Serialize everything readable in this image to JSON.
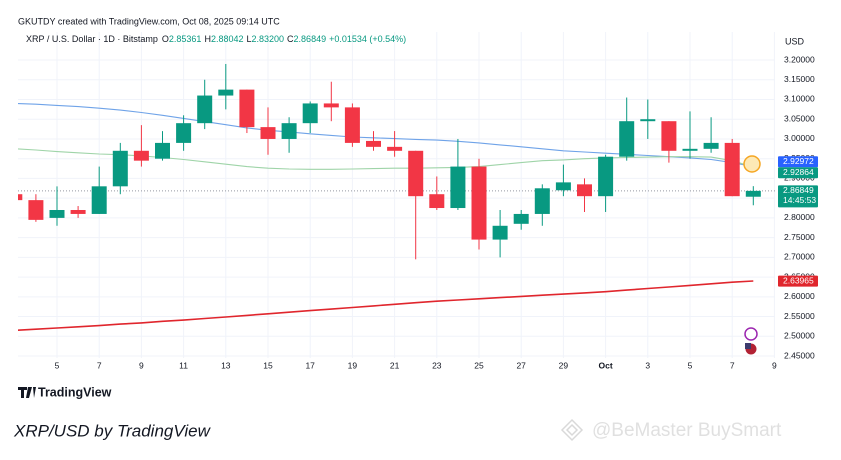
{
  "chart_data": {
    "type": "candlestick",
    "credit": "GKUTDY created with TradingView.com, Oct 08, 2025 09:14 UTC",
    "symbol": "XRP / U.S. Dollar · 1D · Bitstamp",
    "legend_values": [
      {
        "key": "O",
        "value": "2.85361"
      },
      {
        "key": "H",
        "value": "2.88042"
      },
      {
        "key": "L",
        "value": "2.83200"
      },
      {
        "key": "C",
        "value": "2.86849"
      }
    ],
    "change": "+0.01534 (+0.54%)",
    "currency": "USD",
    "categories": [
      null,
      null,
      "5",
      null,
      "7",
      null,
      "9",
      null,
      "11",
      null,
      "13",
      null,
      "15",
      null,
      "17",
      null,
      "19",
      null,
      "21",
      null,
      "23",
      null,
      "25",
      null,
      "27",
      null,
      "29",
      null,
      "Oct",
      null,
      "3",
      null,
      "5",
      null,
      "7",
      null,
      "9"
    ],
    "open": [
      2.86,
      2.845,
      2.8,
      2.82,
      2.81,
      2.88,
      2.97,
      2.95,
      2.99,
      3.04,
      3.11,
      3.125,
      3.03,
      3.0,
      3.04,
      3.09,
      3.08,
      2.995,
      2.98,
      2.97,
      2.86,
      2.825,
      2.93,
      2.745,
      2.785,
      2.81,
      2.87,
      2.885,
      2.855,
      2.955,
      3.045,
      3.045,
      2.97,
      2.975,
      2.99,
      2.85361,
      null
    ],
    "high": [
      2.87,
      2.86,
      2.88,
      2.83,
      2.93,
      2.99,
      3.035,
      3.02,
      3.06,
      3.15,
      3.19,
      3.125,
      3.08,
      3.055,
      3.095,
      3.145,
      3.09,
      3.02,
      3.02,
      2.97,
      2.905,
      3.0,
      2.95,
      2.82,
      2.82,
      2.885,
      2.935,
      2.9,
      2.96,
      3.105,
      3.1,
      3.045,
      3.07,
      3.055,
      3.0,
      2.88042,
      null
    ],
    "low": [
      2.84,
      2.79,
      2.78,
      2.8,
      2.81,
      2.86,
      2.93,
      2.945,
      2.97,
      3.025,
      3.075,
      3.015,
      2.96,
      2.965,
      3.015,
      3.045,
      2.98,
      2.97,
      2.955,
      2.695,
      2.82,
      2.82,
      2.72,
      2.7,
      2.77,
      2.78,
      2.855,
      2.815,
      2.815,
      2.945,
      3.0,
      2.94,
      2.95,
      2.965,
      2.855,
      2.832,
      null
    ],
    "close": [
      2.845,
      2.795,
      2.82,
      2.81,
      2.88,
      2.97,
      2.945,
      2.99,
      3.04,
      3.11,
      3.125,
      3.03,
      3.0,
      3.04,
      3.09,
      3.08,
      2.99,
      2.98,
      2.97,
      2.855,
      2.825,
      2.93,
      2.745,
      2.78,
      2.81,
      2.875,
      2.89,
      2.855,
      2.955,
      3.045,
      3.05,
      2.97,
      2.975,
      2.99,
      2.855,
      2.86849,
      null
    ],
    "up_color": "#089981",
    "down_color": "#f23645",
    "series": [
      {
        "color": "#6fa3e8",
        "values": [
          3.09,
          3.088,
          3.085,
          3.082,
          3.078,
          3.073,
          3.067,
          3.06,
          3.052,
          3.044,
          3.036,
          3.028,
          3.022,
          3.018,
          3.013,
          3.009,
          3.005,
          3.003,
          3.001,
          2.999,
          2.997,
          2.994,
          2.99,
          2.985,
          2.98,
          2.975,
          2.97,
          2.967,
          2.964,
          2.961,
          2.958,
          2.955,
          2.952,
          2.948,
          2.94,
          2.93,
          null
        ]
      },
      {
        "color": "#9fd4a8",
        "values": [
          2.975,
          2.972,
          2.968,
          2.965,
          2.962,
          2.96,
          2.957,
          2.953,
          2.948,
          2.942,
          2.936,
          2.93,
          2.926,
          2.924,
          2.923,
          2.923,
          2.924,
          2.925,
          2.926,
          2.926,
          2.927,
          2.928,
          2.93,
          2.935,
          2.94,
          2.945,
          2.947,
          2.95,
          2.952,
          2.953,
          2.954,
          2.955,
          2.955,
          2.954,
          2.945,
          2.929,
          null
        ]
      },
      {
        "color": "#e0262d",
        "values": [
          2.515,
          2.518,
          2.521,
          2.524,
          2.527,
          2.531,
          2.534,
          2.538,
          2.541,
          2.545,
          2.549,
          2.553,
          2.557,
          2.561,
          2.565,
          2.569,
          2.573,
          2.577,
          2.581,
          2.585,
          2.589,
          2.592,
          2.595,
          2.598,
          2.601,
          2.604,
          2.607,
          2.61,
          2.613,
          2.617,
          2.621,
          2.625,
          2.629,
          2.633,
          2.637,
          2.64,
          null
        ]
      }
    ],
    "price_tags": [
      {
        "value": 2.92972,
        "color": "#2962ff"
      },
      {
        "value": 2.92864,
        "color": "#089981"
      },
      {
        "value": 2.86849,
        "color": "#089981",
        "countdown": "14:45:53"
      },
      {
        "value": 2.63965,
        "color": "#e0262d"
      }
    ],
    "ylim": [
      2.445,
      3.271
    ],
    "yticks": [
      {
        "value": 3.2,
        "label": "3.20000"
      },
      {
        "value": 3.15,
        "label": "3.15000"
      },
      {
        "value": 3.1,
        "label": "3.10000"
      },
      {
        "value": 3.05,
        "label": "3.05000"
      },
      {
        "value": 3.0,
        "label": "3.00000"
      },
      {
        "value": 2.95,
        "label": "2.95000"
      },
      {
        "value": 2.9,
        "label": "2.90000"
      },
      {
        "value": 2.85,
        "label": "2.85000"
      },
      {
        "value": 2.8,
        "label": "2.80000"
      },
      {
        "value": 2.75,
        "label": "2.75000"
      },
      {
        "value": 2.7,
        "label": "2.70000"
      },
      {
        "value": 2.65,
        "label": "2.65000"
      },
      {
        "value": 2.6,
        "label": "2.60000"
      },
      {
        "value": 2.55,
        "label": "2.55000"
      },
      {
        "value": 2.5,
        "label": "2.50000"
      },
      {
        "value": 2.45,
        "label": "2.45000"
      }
    ],
    "grid": true,
    "logo": "TradingView",
    "caption": "XRP/USD by TradingView",
    "watermark": "@BeMaster BuySmart"
  }
}
